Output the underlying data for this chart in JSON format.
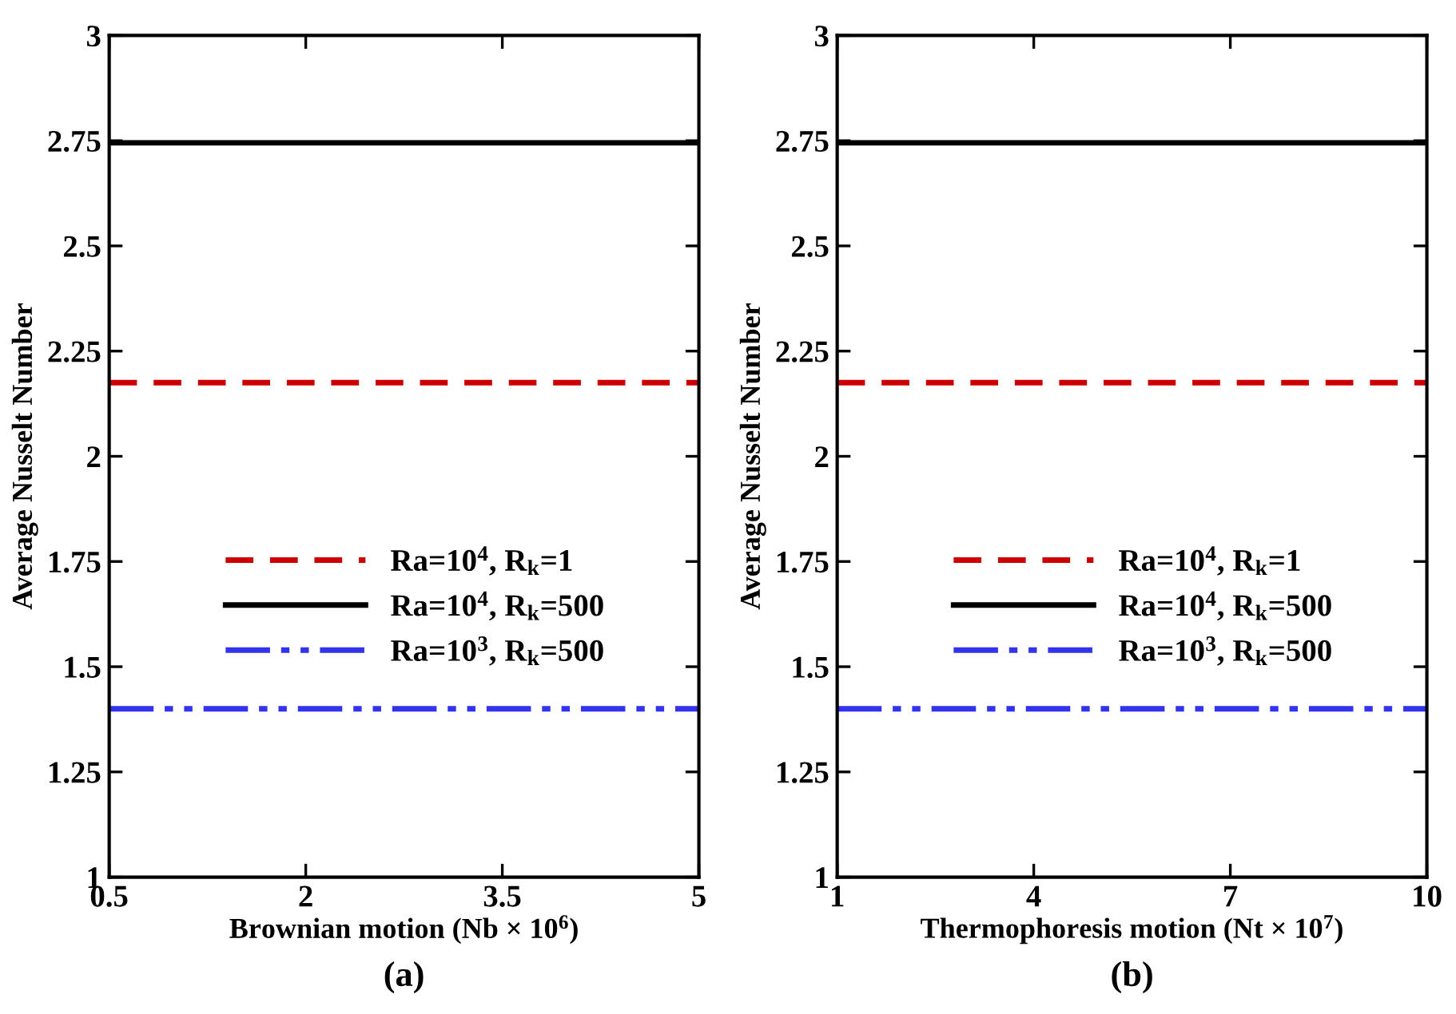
{
  "chart_data": [
    {
      "type": "line",
      "xlabel": "Brownian motion (Nb × 10$^{6}$)",
      "ylabel": "Average Nusselt Number",
      "annotations": [
        "(a)"
      ],
      "xlim": [
        0.5,
        5
      ],
      "xticks": [
        0.5,
        2,
        3.5,
        5
      ],
      "ylim": [
        1,
        3
      ],
      "yticks": [
        1,
        1.25,
        1.5,
        1.75,
        2,
        2.25,
        2.5,
        2.75,
        3
      ],
      "legend": "left",
      "grid": false,
      "marker": "none",
      "series": [
        {
          "name": "Ra=10$^{4}$, R$_{k}$=1",
          "color": "#cc0000",
          "line_style": "dashed",
          "x": [
            0.5,
            5
          ],
          "values": [
            2.175,
            2.175
          ]
        },
        {
          "name": "Ra=10$^{4}$, R$_{k}$=500",
          "color": "#000000",
          "line_style": "solid",
          "x": [
            0.5,
            5
          ],
          "values": [
            2.745,
            2.745
          ]
        },
        {
          "name": "Ra=10$^{3}$, R$_{k}$=500",
          "color": "#3333ee",
          "line_style": "dashdotdot",
          "x": [
            0.5,
            5
          ],
          "values": [
            1.4,
            1.4
          ]
        }
      ]
    },
    {
      "type": "line",
      "xlabel": "Thermophoresis motion (Nt × 10$^{7}$)",
      "ylabel": "Average Nusselt Number",
      "annotations": [
        "(b)"
      ],
      "xlim": [
        1,
        10
      ],
      "xticks": [
        1,
        4,
        7,
        10
      ],
      "ylim": [
        1,
        3
      ],
      "yticks": [
        1,
        1.25,
        1.5,
        1.75,
        2,
        2.25,
        2.5,
        2.75,
        3
      ],
      "legend": "left",
      "grid": false,
      "marker": "none",
      "series": [
        {
          "name": "Ra=10$^{4}$, R$_{k}$=1",
          "color": "#cc0000",
          "line_style": "dashed",
          "x": [
            1,
            10
          ],
          "values": [
            2.175,
            2.175
          ]
        },
        {
          "name": "Ra=10$^{4}$, R$_{k}$=500",
          "color": "#000000",
          "line_style": "solid",
          "x": [
            1,
            10
          ],
          "values": [
            2.745,
            2.745
          ]
        },
        {
          "name": "Ra=10$^{3}$, R$_{k}$=500",
          "color": "#3333ee",
          "line_style": "dashdotdot",
          "x": [
            1,
            10
          ],
          "values": [
            1.4,
            1.4
          ]
        }
      ]
    }
  ]
}
